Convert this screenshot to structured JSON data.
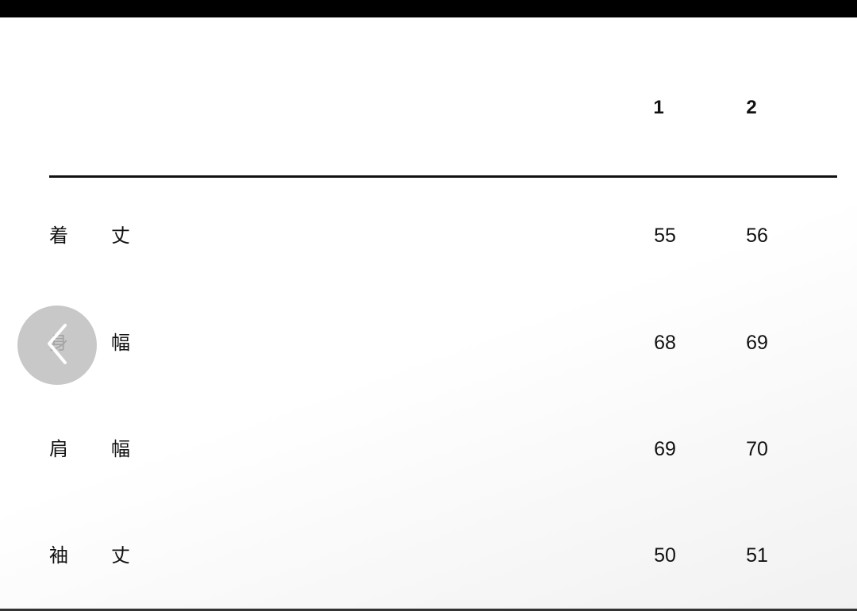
{
  "table": {
    "columns": [
      "1",
      "2"
    ],
    "rows": [
      {
        "label": [
          "着",
          "丈"
        ],
        "values": [
          "55",
          "56"
        ]
      },
      {
        "label": [
          "身",
          "幅"
        ],
        "values": [
          "68",
          "69"
        ]
      },
      {
        "label": [
          "肩",
          "幅"
        ],
        "values": [
          "69",
          "70"
        ]
      },
      {
        "label": [
          "袖",
          "丈"
        ],
        "values": [
          "50",
          "51"
        ]
      }
    ]
  },
  "nav": {
    "back_icon": "chevron-left-icon"
  }
}
